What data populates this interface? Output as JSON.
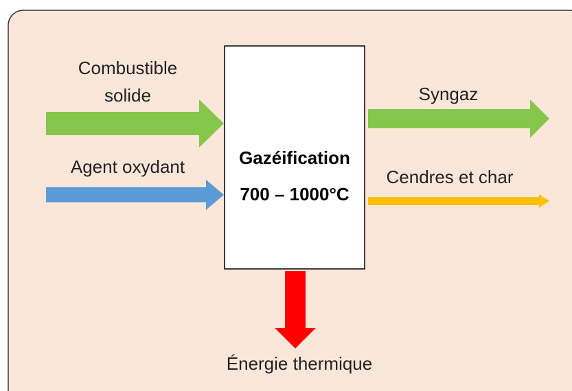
{
  "inputs": [
    {
      "label": [
        "Combustible",
        "solide"
      ]
    },
    {
      "label": [
        "Agent oxydant"
      ]
    }
  ],
  "process": {
    "title": "Gazéification",
    "temperature": "700 – 1000°C"
  },
  "outputs": [
    {
      "label": "Syngaz"
    },
    {
      "label": "Cendres et char"
    },
    {
      "label": "Énergie thermique"
    }
  ]
}
